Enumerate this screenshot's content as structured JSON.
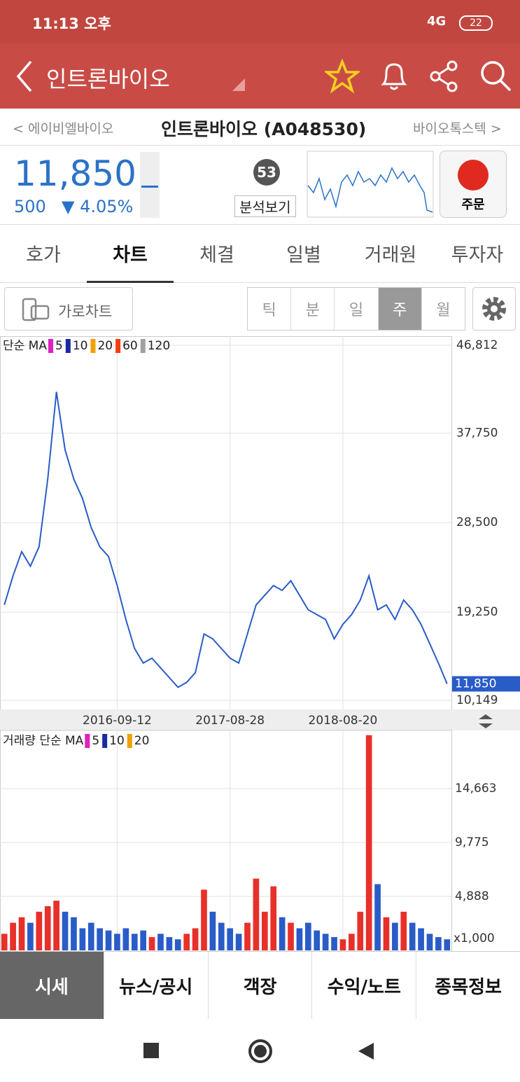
{
  "status_bar": {
    "time": "11:13 오후",
    "network": "4G",
    "battery": "22"
  },
  "header": {
    "title": "인트론바이오"
  },
  "stock_nav": {
    "prev": "< 에이비엘바이오",
    "current": "인트론바이오 (A048530)",
    "next": "바이오톡스텍 >"
  },
  "quote": {
    "price": "11,850",
    "change": "500",
    "change_rate": "▼ 4.05%",
    "score": "53",
    "analysis": "분석보기",
    "order": "주문"
  },
  "tabs": [
    "호가",
    "차트",
    "체결",
    "일별",
    "거래원",
    "투자자"
  ],
  "chart_toolbar": {
    "landscape": "가로차트",
    "periods": [
      "틱",
      "분",
      "일",
      "주",
      "월"
    ]
  },
  "price_chart": {
    "type": "line",
    "legend_title": "단순 MA",
    "ma_periods": [
      {
        "name": "5",
        "color": "#e020c0"
      },
      {
        "name": "10",
        "color": "#1a2aa0"
      },
      {
        "name": "20",
        "color": "#f0a000"
      },
      {
        "name": "60",
        "color": "#f04010"
      },
      {
        "name": "120",
        "color": "#a0a0a0"
      }
    ],
    "categories": [
      null,
      null,
      null,
      null,
      null,
      null,
      null,
      null,
      null,
      null,
      null,
      null,
      null,
      "2016-09-12",
      null,
      null,
      null,
      null,
      null,
      null,
      null,
      null,
      null,
      null,
      null,
      null,
      "2017-08-28",
      null,
      null,
      null,
      null,
      null,
      null,
      null,
      null,
      null,
      null,
      null,
      null,
      "2018-08-20",
      null,
      null,
      null,
      null,
      null,
      null,
      null,
      null,
      null,
      null,
      null,
      null
    ],
    "values": [
      20000,
      23000,
      25500,
      24000,
      26000,
      33000,
      42000,
      36000,
      33000,
      31000,
      28000,
      26000,
      25000,
      22000,
      18500,
      15500,
      14000,
      14500,
      13500,
      12500,
      11500,
      12000,
      13000,
      17000,
      16500,
      15500,
      14500,
      14000,
      17000,
      20000,
      21000,
      22000,
      21500,
      22500,
      21000,
      19500,
      19000,
      18500,
      16500,
      18000,
      19000,
      20500,
      23000,
      19500,
      20000,
      18500,
      20500,
      19500,
      18000,
      16000,
      14000,
      11850
    ],
    "color": "#2a5cc8",
    "ylim": [
      10149,
      46812
    ],
    "yticks": [
      {
        "value": 46812,
        "label": "46,812"
      },
      {
        "value": 37750,
        "label": "37,750"
      },
      {
        "value": 28500,
        "label": "28,500"
      },
      {
        "value": 19250,
        "label": "19,250"
      },
      {
        "value": 10149,
        "label": "10,149"
      }
    ],
    "current_label": "11,850"
  },
  "volume_chart": {
    "type": "bar",
    "legend_title": "거래량 단순 MA",
    "ma_periods": [
      {
        "name": "5",
        "color": "#e020c0"
      },
      {
        "name": "10",
        "color": "#1a2aa0"
      },
      {
        "name": "20",
        "color": "#f0a000"
      }
    ],
    "values": [
      1500,
      2500,
      3000,
      2500,
      3500,
      4000,
      4500,
      3500,
      3000,
      2000,
      2500,
      2000,
      1800,
      1500,
      2000,
      1500,
      1800,
      1200,
      1500,
      1200,
      1000,
      1500,
      2000,
      5500,
      3500,
      2500,
      2000,
      1500,
      2500,
      6500,
      3500,
      5800,
      3000,
      2500,
      2000,
      2500,
      1800,
      1500,
      1200,
      1000,
      1500,
      3500,
      19500,
      6000,
      3000,
      2500,
      3500,
      2500,
      2000,
      1500,
      1200,
      1000
    ],
    "up_color": "#e8302a",
    "down_color": "#2a5cc8",
    "ylim": [
      0,
      19800
    ],
    "yticks": [
      {
        "value": 14663,
        "label": "14,663"
      },
      {
        "value": 9775,
        "label": "9,775"
      },
      {
        "value": 4888,
        "label": "4,888"
      }
    ],
    "unit_label": "x1,000"
  },
  "bottom_tabs": [
    "시세",
    "뉴스/공시",
    "객장",
    "수익/노트",
    "종목정보"
  ]
}
